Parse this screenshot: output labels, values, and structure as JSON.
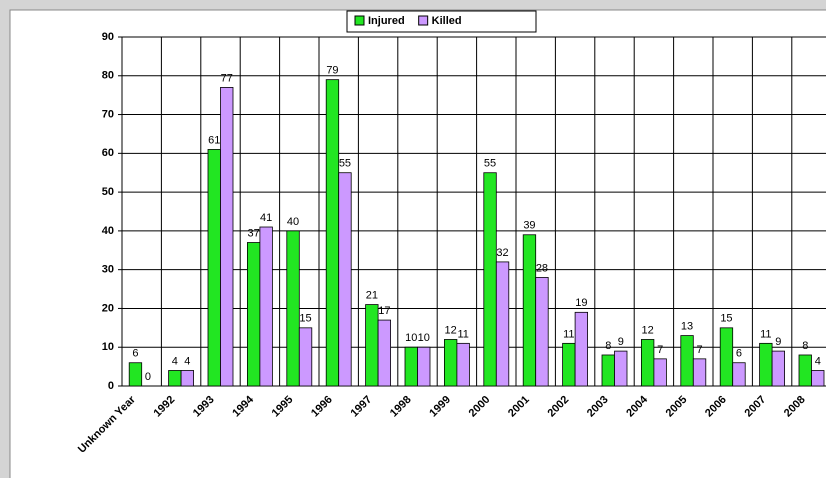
{
  "chart_data": {
    "type": "bar",
    "categories": [
      "Unknown Year",
      "1992",
      "1993",
      "1994",
      "1995",
      "1996",
      "1997",
      "1998",
      "1999",
      "2000",
      "2001",
      "2002",
      "2003",
      "2004",
      "2005",
      "2006",
      "2007",
      "2008"
    ],
    "series": [
      {
        "name": "Injured",
        "color": "#22e622",
        "values": [
          6,
          4,
          61,
          37,
          40,
          79,
          21,
          10,
          12,
          55,
          39,
          11,
          8,
          12,
          13,
          15,
          11,
          8
        ]
      },
      {
        "name": "Killed",
        "color": "#cc99ff",
        "values": [
          0,
          4,
          77,
          41,
          15,
          55,
          17,
          10,
          11,
          32,
          28,
          19,
          9,
          7,
          7,
          6,
          9,
          4
        ]
      }
    ],
    "ylim": [
      0,
      90
    ],
    "yticks": [
      0,
      10,
      20,
      30,
      40,
      50,
      60,
      70,
      80,
      90
    ],
    "grid": true,
    "legend": "top"
  }
}
